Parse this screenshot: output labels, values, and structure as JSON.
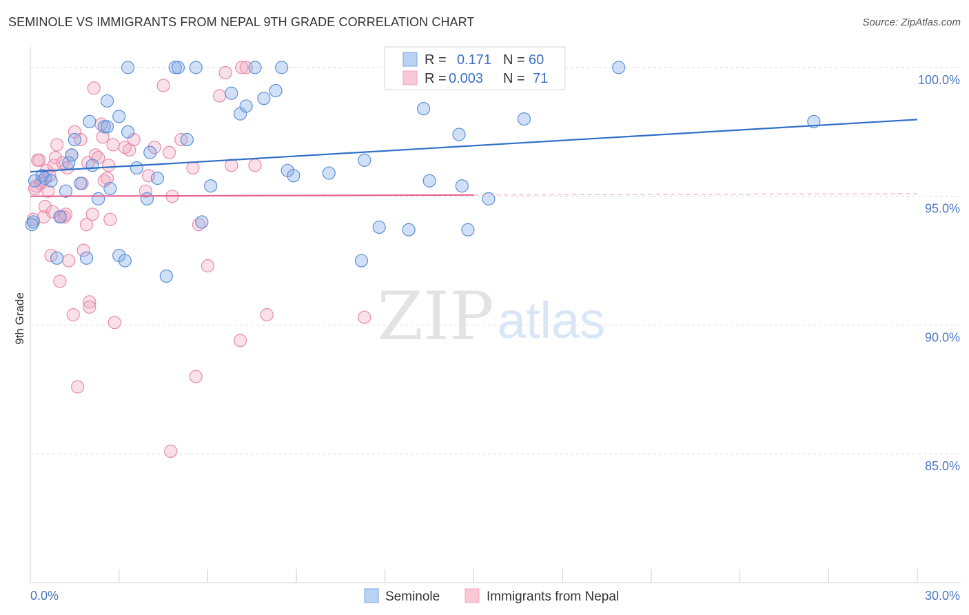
{
  "header": {
    "title": "SEMINOLE VS IMMIGRANTS FROM NEPAL 9TH GRADE CORRELATION CHART",
    "source": "Source: ZipAtlas.com"
  },
  "watermark": {
    "zip": "ZIP",
    "atlas": "atlas"
  },
  "legend": {
    "rows": [
      {
        "r_label": "R =",
        "r_value": "0.171",
        "n_label": "N =",
        "n_value": "60"
      },
      {
        "r_label": "R =",
        "r_value": "0.003",
        "n_label": "N =",
        "n_value": "71"
      }
    ]
  },
  "chart_data": {
    "type": "scatter",
    "ylabel": "9th Grade",
    "xlim": [
      0,
      30
    ],
    "ylim": [
      80,
      100.8
    ],
    "y_ticks": [
      {
        "value": 100,
        "label": "100.0%"
      },
      {
        "value": 95,
        "label": "95.0%"
      },
      {
        "value": 90,
        "label": "90.0%"
      },
      {
        "value": 85,
        "label": "85.0%"
      }
    ],
    "x_ticks": [
      {
        "value": 0,
        "label": "0.0%"
      },
      {
        "value": 30,
        "label": "30.0%"
      }
    ],
    "grid": true,
    "legend_position": "top-center",
    "colors": {
      "seminole": "#7aa7e6",
      "seminole_line": "#2f6fc7",
      "nepal": "#f2a6c0",
      "nepal_line": "#e8628e"
    },
    "series": [
      {
        "name": "Seminole",
        "trend": {
          "x": [
            0,
            30
          ],
          "y": [
            95.95,
            97.98
          ]
        },
        "points": [
          [
            0.1,
            94.0
          ],
          [
            0.15,
            95.6
          ],
          [
            0.4,
            95.8
          ],
          [
            0.5,
            95.7
          ],
          [
            0.7,
            95.6
          ],
          [
            0.9,
            92.6
          ],
          [
            1.0,
            94.2
          ],
          [
            1.2,
            95.2
          ],
          [
            1.3,
            96.3
          ],
          [
            1.4,
            96.6
          ],
          [
            1.5,
            97.2
          ],
          [
            1.7,
            95.5
          ],
          [
            1.9,
            92.6
          ],
          [
            2.0,
            97.9
          ],
          [
            2.1,
            96.2
          ],
          [
            2.3,
            94.9
          ],
          [
            2.5,
            97.7
          ],
          [
            2.6,
            97.7
          ],
          [
            2.6,
            98.7
          ],
          [
            2.7,
            95.3
          ],
          [
            3.0,
            92.7
          ],
          [
            3.0,
            98.1
          ],
          [
            3.2,
            92.5
          ],
          [
            3.3,
            97.5
          ],
          [
            3.3,
            100.0
          ],
          [
            3.6,
            96.1
          ],
          [
            3.95,
            94.9
          ],
          [
            4.05,
            96.7
          ],
          [
            4.3,
            95.7
          ],
          [
            4.6,
            91.9
          ],
          [
            4.9,
            100.0
          ],
          [
            5.0,
            100.0
          ],
          [
            5.3,
            97.2
          ],
          [
            5.6,
            100.0
          ],
          [
            5.8,
            94.0
          ],
          [
            6.1,
            95.4
          ],
          [
            6.8,
            99.0
          ],
          [
            7.1,
            98.2
          ],
          [
            7.3,
            98.5
          ],
          [
            7.6,
            100.0
          ],
          [
            7.9,
            98.8
          ],
          [
            8.3,
            99.1
          ],
          [
            8.5,
            100.0
          ],
          [
            8.7,
            96.0
          ],
          [
            8.9,
            95.8
          ],
          [
            10.1,
            95.9
          ],
          [
            11.2,
            92.5
          ],
          [
            11.3,
            96.4
          ],
          [
            11.8,
            93.8
          ],
          [
            12.8,
            93.7
          ],
          [
            13.3,
            98.4
          ],
          [
            13.5,
            95.6
          ],
          [
            14.5,
            97.4
          ],
          [
            14.6,
            95.4
          ],
          [
            14.8,
            93.7
          ],
          [
            15.5,
            94.9
          ],
          [
            16.7,
            98.0
          ],
          [
            19.9,
            100.0
          ],
          [
            26.5,
            97.9
          ],
          [
            0.05,
            93.9
          ]
        ]
      },
      {
        "name": "Immigrants from Nepal",
        "trend": {
          "x": [
            0,
            15
          ],
          "y": [
            95.0,
            95.05
          ]
        },
        "trend_dashed": {
          "x": [
            15,
            30
          ],
          "y": [
            95.05,
            95.1
          ]
        },
        "points": [
          [
            0.1,
            94.1
          ],
          [
            0.2,
            95.4
          ],
          [
            0.3,
            96.4
          ],
          [
            0.4,
            95.6
          ],
          [
            0.5,
            94.6
          ],
          [
            0.6,
            95.2
          ],
          [
            0.7,
            92.7
          ],
          [
            0.8,
            96.2
          ],
          [
            0.85,
            96.5
          ],
          [
            0.9,
            97.0
          ],
          [
            1.0,
            91.7
          ],
          [
            1.05,
            94.2
          ],
          [
            1.1,
            96.3
          ],
          [
            1.2,
            94.3
          ],
          [
            1.3,
            92.5
          ],
          [
            1.4,
            96.6
          ],
          [
            1.45,
            90.4
          ],
          [
            1.5,
            97.5
          ],
          [
            1.6,
            87.6
          ],
          [
            1.7,
            97.2
          ],
          [
            1.75,
            95.5
          ],
          [
            1.8,
            92.9
          ],
          [
            1.9,
            93.9
          ],
          [
            1.95,
            96.3
          ],
          [
            2.0,
            90.9
          ],
          [
            2.0,
            90.7
          ],
          [
            2.1,
            94.3
          ],
          [
            2.15,
            99.2
          ],
          [
            2.2,
            96.6
          ],
          [
            2.3,
            96.5
          ],
          [
            2.4,
            97.8
          ],
          [
            2.45,
            97.3
          ],
          [
            2.5,
            95.6
          ],
          [
            2.6,
            95.7
          ],
          [
            2.65,
            96.2
          ],
          [
            2.7,
            94.1
          ],
          [
            2.8,
            97.0
          ],
          [
            2.85,
            90.1
          ],
          [
            3.2,
            96.9
          ],
          [
            3.35,
            96.8
          ],
          [
            3.5,
            97.2
          ],
          [
            3.9,
            95.2
          ],
          [
            4.0,
            95.8
          ],
          [
            4.2,
            96.9
          ],
          [
            4.5,
            99.3
          ],
          [
            4.7,
            96.7
          ],
          [
            4.75,
            85.1
          ],
          [
            4.8,
            95.0
          ],
          [
            5.1,
            97.2
          ],
          [
            5.5,
            96.1
          ],
          [
            5.6,
            88.0
          ],
          [
            5.7,
            93.9
          ],
          [
            6.0,
            92.3
          ],
          [
            6.4,
            98.9
          ],
          [
            6.6,
            99.8
          ],
          [
            6.8,
            96.2
          ],
          [
            7.1,
            89.4
          ],
          [
            7.15,
            100.0
          ],
          [
            7.3,
            100.0
          ],
          [
            7.6,
            96.2
          ],
          [
            8.0,
            90.4
          ],
          [
            11.3,
            90.3
          ],
          [
            0.15,
            95.3
          ],
          [
            0.25,
            96.4
          ],
          [
            0.35,
            95.5
          ],
          [
            0.45,
            94.2
          ],
          [
            0.55,
            96.0
          ],
          [
            0.65,
            95.8
          ],
          [
            0.75,
            94.4
          ],
          [
            1.15,
            94.2
          ],
          [
            1.25,
            96.1
          ]
        ]
      }
    ]
  },
  "bottom_legend": {
    "items": [
      {
        "label": "Seminole"
      },
      {
        "label": "Immigrants from Nepal"
      }
    ]
  }
}
